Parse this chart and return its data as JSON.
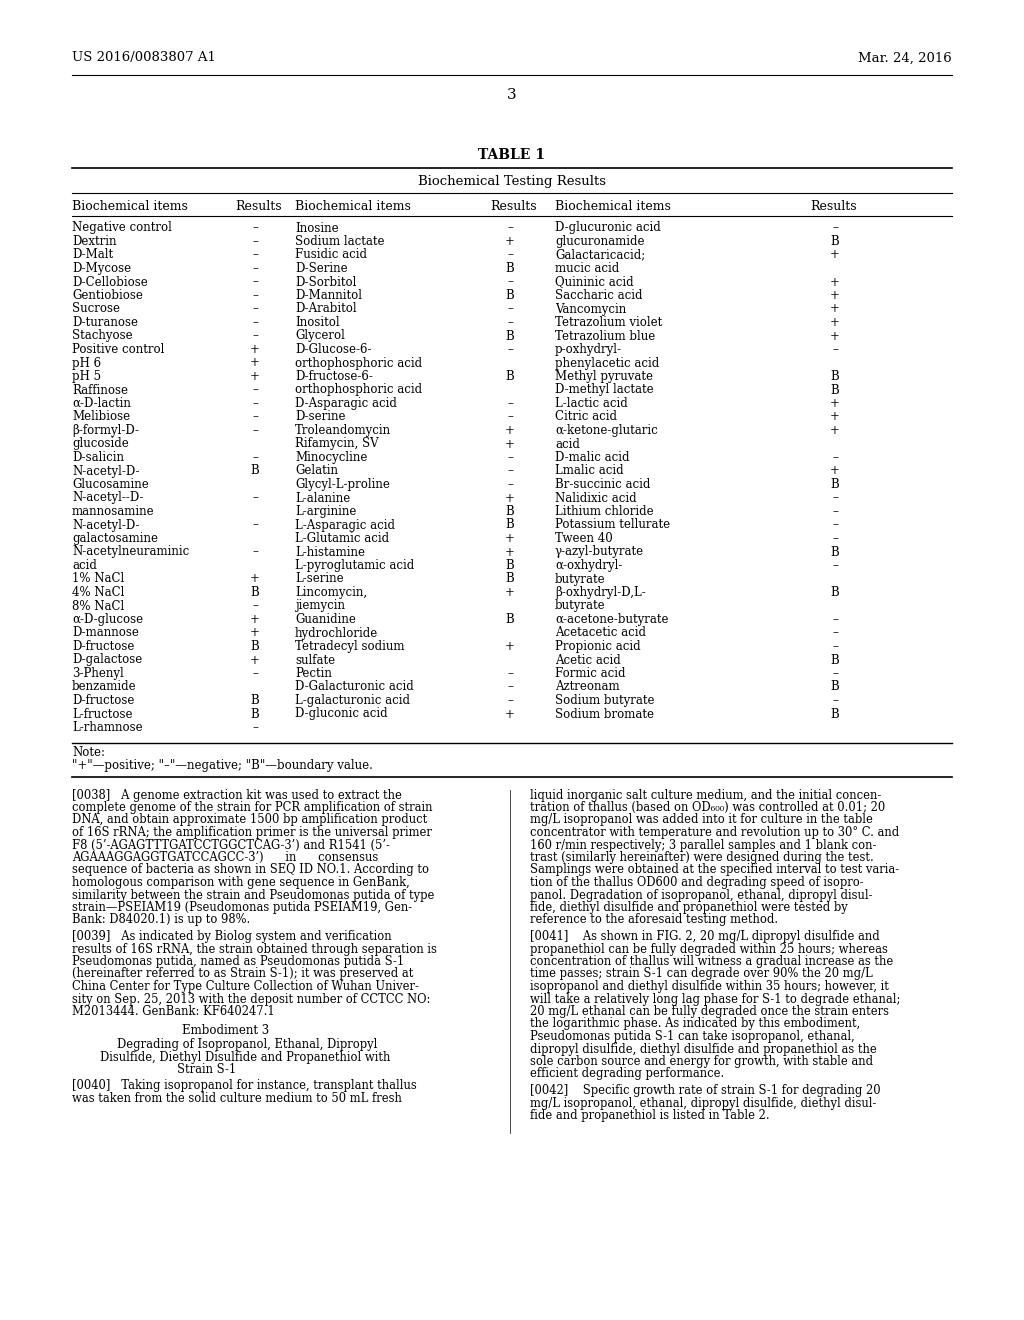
{
  "background_color": "#ffffff",
  "header_left": "US 2016/0083807 A1",
  "header_right": "Mar. 24, 2016",
  "page_number": "3",
  "table_title": "TABLE 1",
  "table_subtitle": "Biochemical Testing Results",
  "col_headers": [
    "Biochemical items",
    "Results",
    "Biochemical items",
    "Results",
    "Biochemical items",
    "Results"
  ],
  "table_rows": [
    [
      "Negative control",
      "–",
      "Inosine",
      "–",
      "D-glucuronic acid",
      "–"
    ],
    [
      "Dextrin",
      "–",
      "Sodium lactate",
      "+",
      "glucuronamide",
      "B"
    ],
    [
      "D-Malt",
      "–",
      "Fusidic acid",
      "–",
      "Galactaricacid;",
      "+"
    ],
    [
      "D-Mycose",
      "–",
      "D-Serine",
      "B",
      "mucic acid",
      ""
    ],
    [
      "D-Cellobiose",
      "–",
      "D-Sorbitol",
      "–",
      "Quininic acid",
      "+"
    ],
    [
      "Gentiobiose",
      "–",
      "D-Mannitol",
      "B",
      "Saccharic acid",
      "+"
    ],
    [
      "Sucrose",
      "–",
      "D-Arabitol",
      "–",
      "Vancomycin",
      "+"
    ],
    [
      "D-turanose",
      "–",
      "Inositol",
      "–",
      "Tetrazolium violet",
      "+"
    ],
    [
      "Stachyose",
      "–",
      "Glycerol",
      "B",
      "Tetrazolium blue",
      "+"
    ],
    [
      "Positive control",
      "+",
      "D-Glucose-6-",
      "–",
      "p-oxhydryl-",
      "–"
    ],
    [
      "pH 6",
      "+",
      "orthophosphoric acid",
      "",
      "phenylacetic acid",
      ""
    ],
    [
      "pH 5",
      "+",
      "D-fructose-6-",
      "B",
      "Methyl pyruvate",
      "B"
    ],
    [
      "Raffinose",
      "–",
      "orthophosphoric acid",
      "",
      "D-methyl lactate",
      "B"
    ],
    [
      "α-D-lactin",
      "–",
      "D-Asparagic acid",
      "–",
      "L-lactic acid",
      "+"
    ],
    [
      "Melibiose",
      "–",
      "D-serine",
      "–",
      "Citric acid",
      "+"
    ],
    [
      "β-formyl-D-",
      "–",
      "Troleandomycin",
      "+",
      "α-ketone-glutaric",
      "+"
    ],
    [
      "glucoside",
      "",
      "Rifamycin, SV",
      "+",
      "acid",
      ""
    ],
    [
      "D-salicin",
      "–",
      "Minocycline",
      "–",
      "D-malic acid",
      "–"
    ],
    [
      "N-acetyl-D-",
      "B",
      "Gelatin",
      "–",
      "Lmalic acid",
      "+"
    ],
    [
      "Glucosamine",
      "",
      "Glycyl-L-proline",
      "–",
      "Br-succinic acid",
      "B"
    ],
    [
      "N-acetyl--D-",
      "–",
      "L-alanine",
      "+",
      "Nalidixic acid",
      "–"
    ],
    [
      "mannosamine",
      "",
      "L-arginine",
      "B",
      "Lithium chloride",
      "–"
    ],
    [
      "N-acetyl-D-",
      "–",
      "L-Asparagic acid",
      "B",
      "Potassium tellurate",
      "–"
    ],
    [
      "galactosamine",
      "",
      "L-Glutamic acid",
      "+",
      "Tween 40",
      "–"
    ],
    [
      "N-acetylneuraminic",
      "–",
      "L-histamine",
      "+",
      "γ-azyl-butyrate",
      "B"
    ],
    [
      "acid",
      "",
      "L-pyroglutamic acid",
      "B",
      "α-oxhydryl-",
      "–"
    ],
    [
      "1% NaCl",
      "+",
      "L-serine",
      "B",
      "butyrate",
      ""
    ],
    [
      "4% NaCl",
      "B",
      "Lincomycin,",
      "+",
      "β-oxhydryl-D,L-",
      "B"
    ],
    [
      "8% NaCl",
      "–",
      "jiemycin",
      "",
      "butyrate",
      ""
    ],
    [
      "α-D-glucose",
      "+",
      "Guanidine",
      "B",
      "α-acetone-butyrate",
      "–"
    ],
    [
      "D-mannose",
      "+",
      "hydrochloride",
      "",
      "Acetacetic acid",
      "–"
    ],
    [
      "D-fructose",
      "B",
      "Tetradecyl sodium",
      "+",
      "Propionic acid",
      "–"
    ],
    [
      "D-galactose",
      "+",
      "sulfate",
      "",
      "Acetic acid",
      "B"
    ],
    [
      "3-Phenyl",
      "–",
      "Pectin",
      "–",
      "Formic acid",
      "–"
    ],
    [
      "benzamide",
      "",
      "D-Galacturonic acid",
      "–",
      "Aztreonam",
      "B"
    ],
    [
      "D-fructose",
      "B",
      "L-galacturonic acid",
      "–",
      "Sodium butyrate",
      "–"
    ],
    [
      "L-fructose",
      "B",
      "D-gluconic acid",
      "+",
      "Sodium bromate",
      "B"
    ],
    [
      "L-rhamnose",
      "–",
      "",
      "",
      "",
      ""
    ]
  ],
  "note_text": "Note:\n\"+\"—positive; \"–\"—negative; \"B\"—boundary value.",
  "para0038_label": "[0038]",
  "para0038_text": "A genome extraction kit was used to extract the complete genome of the strain for PCR amplification of strain DNA, and obtain approximate 1500 bp amplification product of 16S rRNA; the amplification primer is the universal primer F8 (5’-AGAGTTTGATCCTGGCTCAG-3’) and R1541 (5’-AGAAAGGAGGTGATCCAGCC-3’) in consensus sequence of bacteria as shown in SEQ ID NO.1. According to homologous comparison with gene sequence in GenBank, similarity between the strain and ",
  "para0038_italic": "Pseudomonas putida",
  "para0038_text2": " of type strain—PSEIAM19 (",
  "para0038_italic2": "Pseudomonas putida",
  "para0038_text3": " PSEIAM19, GenBank: D84020.1) is up to 98%.",
  "para0039_label": "[0039]",
  "para0039_text": "As indicated by Biolog system and verification results of 16S rRNA, the strain obtained through separation is ",
  "para0039_italic": "Pseudomonas putida",
  "para0039_text2": ", named as ",
  "para0039_italic2": "Pseudomonas putida",
  "para0039_text3": " S-1 (hereinafter referred to as Strain S-1); it was preserved at China Center for Type Culture Collection of Wuhan University on Sep. 25, 2013 with the deposit number of CCTCC NO: M2013444. GenBank: KF640247.1",
  "embodiment3_title": "Embodiment 3",
  "embodiment3_subtitle1": "Degrading of Isopropanol, Ethanal, Dipropyl",
  "embodiment3_subtitle2": "Disulfide, Diethyl Disulfide and Propanethiol with",
  "embodiment3_subtitle3": "Strain S-1",
  "para0040_label": "[0040]",
  "para0040_text": "Taking isopropanol for instance, transplant thallus was taken from the solid culture medium to 50 mL fresh",
  "right_col_para0040": "liquid inorganic salt culture medium, and the initial concentration of thallus (based on OD",
  "right_col_para0040_sub": "600",
  "right_col_para0040_cont": ") was controlled at 0.01; 20 mg/L isopropanol was added into it for culture in the table concentrator with temperature and revolution up to 30° C. and 160 r/min respectively; 3 parallel samples and 1 blank contrast (similarly hereinafter) were designed during the test. Samplings were obtained at the specified interval to test variation of the thallus OD600 and degrading speed of isopropanol. Degradation of isopropanol, ethanal, dipropyl disulfide, diethyl disulfide and propanethiol were tested by reference to the aforesaid testing method.",
  "para0041_label": "[0041]",
  "para0041_text": "As shown in FIG. 2, 20 mg/L dipropyl disulfide and propanethiol can be fully degraded within 25 hours; whereas concentration of thallus will witness a gradual increase as the time passes; strain S-1 can degrade over 90% the 20 mg/L isopropanol and diethyl disulfide within 35 hours; however, it will take a relatively long lag phase for S-1 to degrade ethanal; 20 mg/L ethanal can be fully degraded once the strain enters the logarithmic phase. As indicated by this embodiment, ",
  "para0041_italic": "Pseudomonas putida",
  "para0041_text2": " S-1 can take isopropanol, ethanal, dipropyl disulfide, diethyl disulfide and propanethiol as the sole carbon source and energy for growth, with stable and efficient degrading performance.",
  "para0042_label": "[0042]",
  "para0042_text": "Specific growth rate of strain S-1 for degrading 20 mg/L isopropanol, ethanal, dipropyl disulfide, diethyl disulfide and propanethiol is listed in Table 2."
}
